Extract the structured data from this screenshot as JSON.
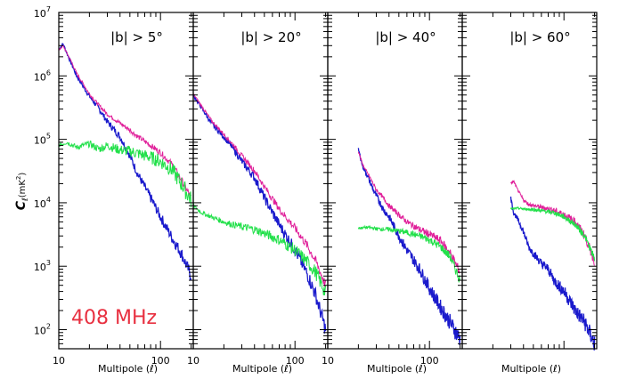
{
  "figure": {
    "ylabel": "C",
    "ylabel_sub": "ℓ",
    "ylabel_unit": "(mK",
    "ylabel_unit_sup": "2",
    "ylabel_unit_close": ")",
    "frequency_label": "408 MHz",
    "colors": {
      "blue": "#1a1acc",
      "magenta": "#e0209a",
      "green": "#22e04a",
      "label": "#e83040"
    }
  },
  "chart_data": [
    {
      "type": "line",
      "title": "|b| > 5°",
      "xlabel": "Multipole (ℓ)",
      "xscale": "log",
      "yscale": "log",
      "xlim": [
        10,
        210
      ],
      "ylim": [
        50,
        10000000
      ],
      "xticks": [
        10,
        100
      ],
      "xtick_labels": [
        "10",
        "100"
      ],
      "yticks": [
        100,
        1000,
        10000,
        100000,
        1000000,
        10000000
      ],
      "ytick_labels": [
        "10",
        "10",
        "10",
        "10",
        "10",
        "10"
      ],
      "ytick_exponents": [
        "2",
        "3",
        "4",
        "5",
        "6",
        "7"
      ],
      "series": [
        {
          "color": "blue",
          "noise": 0.05,
          "x": [
            10,
            11,
            13,
            15,
            20,
            25,
            30,
            40,
            50,
            60,
            80,
            100,
            130,
            160,
            200
          ],
          "y": [
            2600000,
            3200000,
            1700000,
            1000000,
            480000,
            300000,
            190000,
            110000,
            55000,
            28000,
            12000,
            6000,
            2800,
            1600,
            700
          ]
        },
        {
          "color": "magenta",
          "noise": 0.03,
          "x": [
            10,
            11,
            13,
            15,
            20,
            25,
            30,
            40,
            50,
            60,
            80,
            100,
            130,
            160,
            200
          ],
          "y": [
            2500000,
            3000000,
            1800000,
            1100000,
            520000,
            340000,
            250000,
            180000,
            140000,
            110000,
            80000,
            62000,
            40000,
            23000,
            12000
          ]
        },
        {
          "color": "green",
          "noise": 0.07,
          "x": [
            10,
            12,
            15,
            20,
            25,
            30,
            40,
            50,
            60,
            80,
            100,
            130,
            160,
            200
          ],
          "y": [
            80000,
            90000,
            75000,
            85000,
            70000,
            80000,
            68000,
            65000,
            60000,
            52000,
            45000,
            33000,
            20000,
            11000
          ]
        }
      ]
    },
    {
      "type": "line",
      "title": "|b| > 20°",
      "xlabel": "Multipole (ℓ)",
      "xscale": "log",
      "yscale": "log",
      "xlim": [
        10,
        210
      ],
      "ylim": [
        50,
        10000000
      ],
      "xticks": [
        10,
        100
      ],
      "xtick_labels": [
        "10",
        "100"
      ],
      "series": [
        {
          "color": "blue",
          "noise": 0.06,
          "x": [
            10,
            12,
            15,
            20,
            25,
            30,
            40,
            50,
            70,
            100,
            130,
            160,
            200
          ],
          "y": [
            500000,
            320000,
            180000,
            110000,
            70000,
            45000,
            25000,
            12000,
            4500,
            1800,
            800,
            350,
            100
          ]
        },
        {
          "color": "magenta",
          "noise": 0.04,
          "x": [
            10,
            12,
            15,
            20,
            25,
            30,
            40,
            50,
            70,
            100,
            130,
            160,
            200
          ],
          "y": [
            520000,
            340000,
            200000,
            120000,
            80000,
            55000,
            32000,
            18000,
            8000,
            4000,
            2200,
            1200,
            500
          ]
        },
        {
          "color": "green",
          "noise": 0.06,
          "x": [
            10,
            12,
            15,
            20,
            25,
            30,
            40,
            50,
            70,
            100,
            130,
            160,
            200
          ],
          "y": [
            9000,
            7000,
            6000,
            5000,
            4500,
            4200,
            3800,
            3300,
            2600,
            1800,
            1200,
            800,
            380
          ]
        }
      ]
    },
    {
      "type": "line",
      "title": "|b| > 40°",
      "xlabel": "Multipole (ℓ)",
      "xscale": "log",
      "yscale": "log",
      "xlim": [
        10,
        210
      ],
      "ylim": [
        50,
        10000000
      ],
      "xticks": [
        10,
        100
      ],
      "xtick_labels": [
        "10",
        "100"
      ],
      "series": [
        {
          "color": "blue",
          "noise": 0.07,
          "x": [
            20,
            22,
            25,
            28,
            30,
            35,
            40,
            50,
            60,
            80,
            100,
            130,
            160,
            200
          ],
          "y": [
            70000,
            38000,
            25000,
            16000,
            13000,
            8000,
            6000,
            3000,
            1800,
            900,
            450,
            220,
            130,
            70
          ]
        },
        {
          "color": "magenta",
          "noise": 0.04,
          "x": [
            20,
            22,
            25,
            28,
            30,
            35,
            40,
            50,
            60,
            80,
            100,
            130,
            160,
            200
          ],
          "y": [
            65000,
            40000,
            28000,
            20000,
            16000,
            12000,
            9000,
            6500,
            5000,
            3800,
            3200,
            2500,
            1600,
            800
          ]
        },
        {
          "color": "green",
          "noise": 0.04,
          "x": [
            20,
            25,
            30,
            40,
            50,
            60,
            80,
            100,
            130,
            160,
            200
          ],
          "y": [
            4000,
            4100,
            3900,
            3800,
            3600,
            3400,
            3000,
            2600,
            2000,
            1400,
            600
          ]
        }
      ]
    },
    {
      "type": "line",
      "title": "|b| > 60°",
      "xlabel": "Multipole (ℓ)",
      "xscale": "log",
      "yscale": "log",
      "xlim": [
        10,
        210
      ],
      "ylim": [
        50,
        10000000
      ],
      "xticks": [
        10,
        100
      ],
      "xtick_labels": [
        "",
        ""
      ],
      "series": [
        {
          "color": "blue",
          "noise": 0.07,
          "x": [
            30,
            32,
            35,
            40,
            45,
            50,
            60,
            70,
            80,
            100,
            130,
            160,
            200
          ],
          "y": [
            12000,
            7000,
            5500,
            3500,
            2000,
            1600,
            1100,
            900,
            600,
            400,
            200,
            130,
            60
          ]
        },
        {
          "color": "magenta",
          "noise": 0.04,
          "x": [
            30,
            32,
            35,
            40,
            45,
            50,
            60,
            70,
            80,
            100,
            130,
            160,
            200
          ],
          "y": [
            20000,
            22000,
            16000,
            11000,
            9500,
            9000,
            8500,
            8000,
            7500,
            6500,
            5000,
            3000,
            1200
          ]
        },
        {
          "color": "green",
          "noise": 0.03,
          "x": [
            30,
            35,
            40,
            50,
            60,
            70,
            80,
            100,
            130,
            160,
            200
          ],
          "y": [
            8000,
            8200,
            8000,
            7800,
            7500,
            7200,
            7000,
            6000,
            4500,
            3000,
            1300
          ]
        }
      ]
    }
  ]
}
